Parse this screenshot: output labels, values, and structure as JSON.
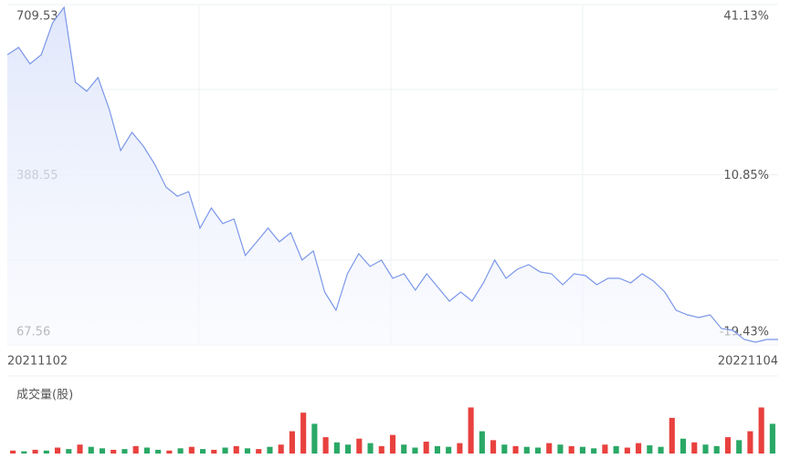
{
  "chart_data": [
    {
      "type": "line",
      "color": "#7b97e8",
      "categories": [
        "20211102",
        null,
        null,
        null,
        null,
        null,
        null,
        null,
        null,
        null,
        null,
        null,
        null,
        null,
        null,
        null,
        null,
        null,
        null,
        null,
        null,
        null,
        null,
        null,
        null,
        null,
        null,
        null,
        null,
        null,
        null,
        null,
        null,
        null,
        null,
        null,
        null,
        null,
        null,
        null,
        null,
        null,
        null,
        null,
        null,
        null,
        null,
        null,
        null,
        null,
        null,
        null,
        null,
        null,
        null,
        null,
        null,
        null,
        null,
        null,
        null,
        null,
        null,
        null,
        null,
        null,
        null,
        null,
        "20221104"
      ],
      "values": [
        614.87,
        628.64,
        597.66,
        614.87,
        675.11,
        704.37,
        563.24,
        546.03,
        571.84,
        511.6,
        434.15,
        468.58,
        442.76,
        408.34,
        365.31,
        348.1,
        356.7,
        287.86,
        325.72,
        296.47,
        305.07,
        236.23,
        262.04,
        287.86,
        262.04,
        279.25,
        227.62,
        244.83,
        167.38,
        132.96,
        201.81,
        239.67,
        215.57,
        227.62,
        193.2,
        201.81,
        170.82,
        201.81,
        175.99,
        150.17,
        167.38,
        150.17,
        184.59,
        227.62,
        193.2,
        210.41,
        219.02,
        205.25,
        201.81,
        181.15,
        201.81,
        198.37,
        181.15,
        193.2,
        193.2,
        184.59,
        201.81,
        188.04,
        167.38,
        132.96,
        124.36,
        119.19,
        124.36,
        98.54,
        95.1,
        77.89,
        72.72,
        77.89,
        77.89
      ],
      "ylim": [
        67.56,
        709.53
      ],
      "yticks": [
        709.53,
        388.55,
        67.56
      ],
      "y2lim": [
        -19.43,
        41.13
      ],
      "y2ticks": [
        {
          "value": 41.13,
          "label": "41.13%"
        },
        {
          "value": 10.85,
          "label": "10.85%"
        },
        {
          "value": -19.43,
          "label": "-19.43%"
        }
      ],
      "grid": true
    },
    {
      "type": "bar",
      "title": "成交量(股)",
      "ylim": [
        0,
        70
      ],
      "values": [
        4,
        3,
        5,
        4,
        8,
        6,
        12,
        9,
        7,
        5,
        6,
        10,
        8,
        5,
        4,
        7,
        9,
        6,
        5,
        8,
        10,
        7,
        6,
        9,
        12,
        30,
        55,
        40,
        22,
        15,
        12,
        20,
        14,
        10,
        25,
        12,
        8,
        16,
        10,
        9,
        14,
        62,
        30,
        18,
        12,
        10,
        9,
        8,
        14,
        12,
        10,
        9,
        7,
        12,
        10,
        8,
        14,
        11,
        9,
        48,
        20,
        15,
        12,
        10,
        22,
        18,
        30,
        62,
        40
      ],
      "colors": [
        "#e8413e",
        "#2aa866",
        "#e8413e",
        "#2aa866",
        "#e8413e",
        "#2aa866",
        "#e8413e",
        "#2aa866",
        "#2aa866",
        "#e8413e",
        "#2aa866",
        "#e8413e",
        "#2aa866",
        "#2aa866",
        "#e8413e",
        "#2aa866",
        "#e8413e",
        "#2aa866",
        "#e8413e",
        "#2aa866",
        "#e8413e",
        "#2aa866",
        "#e8413e",
        "#2aa866",
        "#e8413e",
        "#e8413e",
        "#e8413e",
        "#2aa866",
        "#e8413e",
        "#2aa866",
        "#2aa866",
        "#e8413e",
        "#2aa866",
        "#e8413e",
        "#e8413e",
        "#2aa866",
        "#2aa866",
        "#e8413e",
        "#2aa866",
        "#2aa866",
        "#e8413e",
        "#e8413e",
        "#2aa866",
        "#e8413e",
        "#2aa866",
        "#e8413e",
        "#2aa866",
        "#2aa866",
        "#e8413e",
        "#2aa866",
        "#e8413e",
        "#2aa866",
        "#2aa866",
        "#e8413e",
        "#2aa866",
        "#e8413e",
        "#e8413e",
        "#2aa866",
        "#2aa866",
        "#e8413e",
        "#2aa866",
        "#e8413e",
        "#2aa866",
        "#2aa866",
        "#e8413e",
        "#2aa866",
        "#e8413e",
        "#e8413e",
        "#2aa866"
      ]
    }
  ]
}
